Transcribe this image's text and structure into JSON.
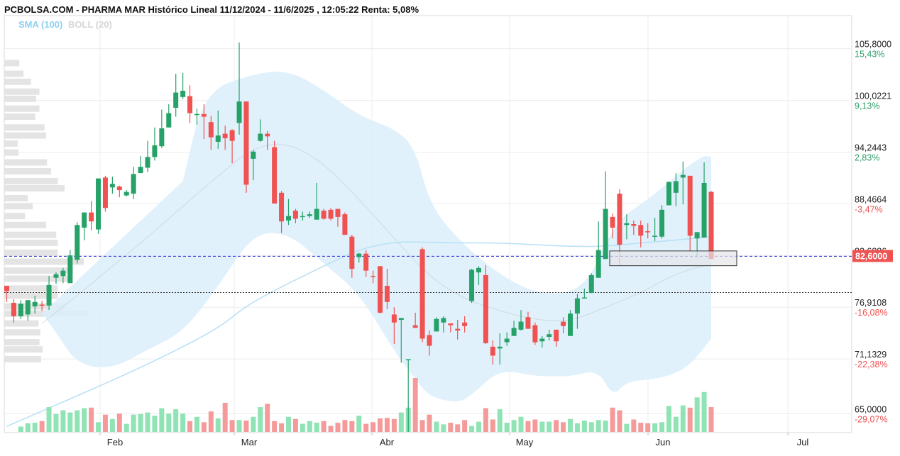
{
  "header": {
    "title": "PCBOLSA.COM - PHARMA MAR Histórico Lineal 11/12/2024 - 11/6/2025 , 12:05:22 Renta: 5,08%"
  },
  "legend": {
    "sma_label": "SMA (100)",
    "boll_label": "BOLL (20)"
  },
  "colors": {
    "up": "#26a269",
    "down": "#f05252",
    "up_volume": "#8fe3b4",
    "down_volume": "#f59a9a",
    "boll_fill": "#dbeefb",
    "sma": "#b9e1f6",
    "boll_mid": "#c8c8c8",
    "current_line": "#2b2bcc",
    "current_badge": "#f05252",
    "positive_text": "#2f9e6a",
    "negative_text": "#f05252"
  },
  "chart_data": {
    "type": "candlestick",
    "y_range": [
      62.9,
      109.5
    ],
    "price_ticks": [
      {
        "price": "105,8000",
        "renta": "15,43%",
        "sign": "pos"
      },
      {
        "price": "100,0221",
        "renta": "9,13%",
        "sign": "pos"
      },
      {
        "price": "94,2443",
        "renta": "2,83%",
        "sign": "pos"
      },
      {
        "price": "88,4664",
        "renta": "-3,47%",
        "sign": "neg"
      },
      {
        "price": "82,6886",
        "renta": "",
        "sign": "neg"
      },
      {
        "price": "76,9108",
        "renta": "-16,08%",
        "sign": "neg"
      },
      {
        "price": "71,1329",
        "renta": "-22,38%",
        "sign": "neg"
      },
      {
        "price": "65,0000",
        "renta": "-29,07%",
        "sign": "neg"
      }
    ],
    "x_ticks": [
      "Feb",
      "Mar",
      "Abr",
      "May",
      "Jun",
      "Jul"
    ],
    "current_price": "82,6000",
    "current_value": 82.6,
    "reference_value": 78.55,
    "box": {
      "top": 83.2,
      "bottom": 81.55
    },
    "candles": [
      [
        78.7,
        79.3,
        78.0,
        77.5,
        "d"
      ],
      [
        77.4,
        75.9,
        77.8,
        75.2,
        "d"
      ],
      [
        75.9,
        77.3,
        77.7,
        75.6,
        "u"
      ],
      [
        76.1,
        77.7,
        77.7,
        75.4,
        "u"
      ],
      [
        77.0,
        77.5,
        78.2,
        76.2,
        "u"
      ],
      [
        77.1,
        77.2,
        77.6,
        76.5,
        "d"
      ],
      [
        77.1,
        79.4,
        80.4,
        76.6,
        "u"
      ],
      [
        80.2,
        80.6,
        80.8,
        79.5,
        "u"
      ],
      [
        80.4,
        81.0,
        81.3,
        79.6,
        "u"
      ],
      [
        79.6,
        82.7,
        83.3,
        79.7,
        "u"
      ],
      [
        82.2,
        86.1,
        86.4,
        81.8,
        "u"
      ],
      [
        85.8,
        87.5,
        87.5,
        84.4,
        "u"
      ],
      [
        86.5,
        87.5,
        88.8,
        85.5,
        "d"
      ],
      [
        85.6,
        91.3,
        91.3,
        85.1,
        "u"
      ],
      [
        91.4,
        88.0,
        91.6,
        87.6,
        "d"
      ],
      [
        90.3,
        90.7,
        91.5,
        89.6,
        "u"
      ],
      [
        90.4,
        90.0,
        90.5,
        89.2,
        "d"
      ],
      [
        89.4,
        89.8,
        90.0,
        89.3,
        "u"
      ],
      [
        89.6,
        91.8,
        92.6,
        89.0,
        "u"
      ],
      [
        91.9,
        92.6,
        93.8,
        92.4,
        "u"
      ],
      [
        92.5,
        93.7,
        95.5,
        92.0,
        "u"
      ],
      [
        93.7,
        95.0,
        97.0,
        93.3,
        "u"
      ],
      [
        94.9,
        96.9,
        99.0,
        94.7,
        "u"
      ],
      [
        97.0,
        98.6,
        99.6,
        97.2,
        "u"
      ],
      [
        99.2,
        100.9,
        103.0,
        98.2,
        "u"
      ],
      [
        100.4,
        101.1,
        103.1,
        100.2,
        "u"
      ],
      [
        100.5,
        98.6,
        101.7,
        97.5,
        "d"
      ],
      [
        98.5,
        98.5,
        99.1,
        97.3,
        "u"
      ],
      [
        98.5,
        98.2,
        99.6,
        95.7,
        "d"
      ],
      [
        97.6,
        95.9,
        98.3,
        94.5,
        "d"
      ],
      [
        95.4,
        96.1,
        98.9,
        94.6,
        "u"
      ],
      [
        96.3,
        95.8,
        97.2,
        94.5,
        "d"
      ],
      [
        96.7,
        95.5,
        96.8,
        93.0,
        "d"
      ],
      [
        97.5,
        99.9,
        106.5,
        96.2,
        "u"
      ],
      [
        99.9,
        90.6,
        99.9,
        89.7,
        "d"
      ],
      [
        93.5,
        94.3,
        94.5,
        91.1,
        "u"
      ],
      [
        95.5,
        96.3,
        97.9,
        95.4,
        "u"
      ],
      [
        96.0,
        96.3,
        96.6,
        94.5,
        "d"
      ],
      [
        94.8,
        88.5,
        95.5,
        88.5,
        "d"
      ],
      [
        89.7,
        86.5,
        89.9,
        85.2,
        "d"
      ],
      [
        86.6,
        87.1,
        89.0,
        86.1,
        "u"
      ],
      [
        87.7,
        86.8,
        87.9,
        86.3,
        "d"
      ],
      [
        87.1,
        87.0,
        87.6,
        86.6,
        "u"
      ],
      [
        87.1,
        87.3,
        87.6,
        86.9,
        "u"
      ],
      [
        86.7,
        87.9,
        90.8,
        86.8,
        "u"
      ],
      [
        87.7,
        86.8,
        87.9,
        86.7,
        "d"
      ],
      [
        87.8,
        86.8,
        88.0,
        86.6,
        "d"
      ],
      [
        87.9,
        87.0,
        87.9,
        85.9,
        "d"
      ],
      [
        87.3,
        85.0,
        87.5,
        85.0,
        "d"
      ],
      [
        84.8,
        81.2,
        85.0,
        80.2,
        "d"
      ],
      [
        82.9,
        82.5,
        83.0,
        81.9,
        "u"
      ],
      [
        82.9,
        81.0,
        83.3,
        80.3,
        "d"
      ],
      [
        80.4,
        80.4,
        81.0,
        79.6,
        "d"
      ],
      [
        81.5,
        76.3,
        81.2,
        76.2,
        "d"
      ],
      [
        79.3,
        77.5,
        81.2,
        76.7,
        "d"
      ],
      [
        76.1,
        75.2,
        76.9,
        72.8,
        "d"
      ],
      [
        75.5,
        75.7,
        75.0,
        70.7,
        "u"
      ],
      [
        71.1,
        71.1,
        71.1,
        63.0,
        "u"
      ],
      [
        74.9,
        74.6,
        76.3,
        74.6,
        "d"
      ],
      [
        83.4,
        73.4,
        83.6,
        73.0,
        "d"
      ],
      [
        73.8,
        72.6,
        74.3,
        71.5,
        "d"
      ],
      [
        74.2,
        75.6,
        75.8,
        74.4,
        "u"
      ],
      [
        75.2,
        75.7,
        75.9,
        74.1,
        "u"
      ],
      [
        75.1,
        74.9,
        75.1,
        74.1,
        "d"
      ],
      [
        74.3,
        74.5,
        75.5,
        73.3,
        "d"
      ],
      [
        75.2,
        74.8,
        75.9,
        74.1,
        "d"
      ],
      [
        77.6,
        81.1,
        81.2,
        77.4,
        "u"
      ],
      [
        81.3,
        80.8,
        81.5,
        79.4,
        "u"
      ],
      [
        80.5,
        72.9,
        81.6,
        72.8,
        "d"
      ],
      [
        71.5,
        72.5,
        73.2,
        70.5,
        "d"
      ],
      [
        72.3,
        72.5,
        74.0,
        70.5,
        "u"
      ],
      [
        73.4,
        73.0,
        74.1,
        72.6,
        "u"
      ],
      [
        73.7,
        74.6,
        75.4,
        73.7,
        "u"
      ],
      [
        74.4,
        75.3,
        76.6,
        74.3,
        "u"
      ],
      [
        75.8,
        74.5,
        76.4,
        74.5,
        "d"
      ],
      [
        74.9,
        73.0,
        75.2,
        72.7,
        "d"
      ],
      [
        73.1,
        73.4,
        73.7,
        72.4,
        "u"
      ],
      [
        73.6,
        73.9,
        74.4,
        73.2,
        "u"
      ],
      [
        74.4,
        73.1,
        74.3,
        72.5,
        "d"
      ],
      [
        75.3,
        74.8,
        75.8,
        74.0,
        "d"
      ],
      [
        73.7,
        76.2,
        76.6,
        73.9,
        "u"
      ],
      [
        76.2,
        77.9,
        78.4,
        74.5,
        "u"
      ],
      [
        78.0,
        78.0,
        79.0,
        78.3,
        "u"
      ],
      [
        78.5,
        80.5,
        80.7,
        78.6,
        "u"
      ],
      [
        80.2,
        83.3,
        86.5,
        80.4,
        "u"
      ],
      [
        82.3,
        87.9,
        92.1,
        82.3,
        "u"
      ],
      [
        87.0,
        85.8,
        87.4,
        84.6,
        "d"
      ],
      [
        89.6,
        83.9,
        90.1,
        81.6,
        "d"
      ],
      [
        86.3,
        86.1,
        87.3,
        84.5,
        "u"
      ],
      [
        86.0,
        86.2,
        86.6,
        85.0,
        "d"
      ],
      [
        86.1,
        84.9,
        86.6,
        83.6,
        "d"
      ],
      [
        85.4,
        85.3,
        86.3,
        84.6,
        "d"
      ],
      [
        84.8,
        84.9,
        86.9,
        84.3,
        "u"
      ],
      [
        84.8,
        87.8,
        88.3,
        84.6,
        "u"
      ],
      [
        88.3,
        90.9,
        91.0,
        88.3,
        "u"
      ],
      [
        89.7,
        91.0,
        91.9,
        88.2,
        "u"
      ],
      [
        91.7,
        91.4,
        93.2,
        88.4,
        "u"
      ],
      [
        91.6,
        84.9,
        91.6,
        83.2,
        "d"
      ],
      [
        84.6,
        85.3,
        85.0,
        82.5,
        "u"
      ],
      [
        84.7,
        90.8,
        93.1,
        84.9,
        "u"
      ],
      [
        89.8,
        82.3,
        89.9,
        82.3,
        "d"
      ]
    ],
    "volume_level_pct": [
      [
        2,
        10
      ],
      [
        3,
        16
      ],
      [
        4,
        17
      ],
      [
        5,
        20
      ],
      [
        6,
        46
      ],
      [
        7,
        33
      ],
      [
        8,
        40
      ],
      [
        9,
        36
      ],
      [
        10,
        40
      ],
      [
        11,
        44
      ],
      [
        12,
        45
      ],
      [
        13,
        18
      ],
      [
        14,
        32
      ],
      [
        15,
        24
      ],
      [
        16,
        34
      ],
      [
        17,
        15
      ],
      [
        18,
        32
      ],
      [
        19,
        33
      ],
      [
        20,
        36
      ],
      [
        21,
        30
      ],
      [
        22,
        44
      ],
      [
        23,
        34
      ],
      [
        24,
        42
      ],
      [
        25,
        34
      ],
      [
        26,
        20
      ],
      [
        27,
        28
      ],
      [
        28,
        18
      ],
      [
        29,
        38
      ],
      [
        30,
        25
      ],
      [
        31,
        54
      ],
      [
        32,
        22
      ],
      [
        33,
        22
      ],
      [
        34,
        21
      ],
      [
        35,
        28
      ],
      [
        36,
        46
      ],
      [
        37,
        52
      ],
      [
        38,
        20
      ],
      [
        39,
        16
      ],
      [
        40,
        28
      ],
      [
        41,
        24
      ],
      [
        42,
        15
      ],
      [
        43,
        20
      ],
      [
        44,
        17
      ],
      [
        45,
        20
      ],
      [
        46,
        11
      ],
      [
        47,
        17
      ],
      [
        48,
        22
      ],
      [
        49,
        20
      ],
      [
        50,
        30
      ],
      [
        51,
        15
      ],
      [
        52,
        18
      ],
      [
        53,
        25
      ],
      [
        54,
        26
      ],
      [
        55,
        24
      ],
      [
        56,
        36
      ],
      [
        57,
        45
      ],
      [
        58,
        100
      ],
      [
        59,
        22
      ],
      [
        60,
        32
      ],
      [
        61,
        19
      ],
      [
        62,
        14
      ],
      [
        63,
        17
      ],
      [
        64,
        14
      ],
      [
        65,
        22
      ],
      [
        66,
        11
      ],
      [
        67,
        19
      ],
      [
        68,
        44
      ],
      [
        69,
        23
      ],
      [
        70,
        42
      ],
      [
        71,
        17
      ],
      [
        72,
        22
      ],
      [
        73,
        28
      ],
      [
        74,
        20
      ],
      [
        75,
        23
      ],
      [
        76,
        19
      ],
      [
        77,
        19
      ],
      [
        78,
        22
      ],
      [
        79,
        18
      ],
      [
        80,
        24
      ],
      [
        81,
        16
      ],
      [
        82,
        21
      ],
      [
        83,
        18
      ],
      [
        84,
        22
      ],
      [
        85,
        21
      ],
      [
        86,
        45
      ],
      [
        87,
        40
      ],
      [
        88,
        15
      ],
      [
        89,
        23
      ],
      [
        90,
        17
      ],
      [
        91,
        16
      ],
      [
        92,
        16
      ],
      [
        93,
        18
      ],
      [
        94,
        48
      ],
      [
        95,
        28
      ],
      [
        96,
        49
      ],
      [
        97,
        45
      ],
      [
        98,
        64
      ],
      [
        99,
        74
      ],
      [
        100,
        46
      ]
    ],
    "volume_profile_pct": [
      [
        104.2,
        18
      ],
      [
        103.0,
        23
      ],
      [
        102.1,
        32
      ],
      [
        101.0,
        42
      ],
      [
        100.2,
        38
      ],
      [
        99.1,
        42
      ],
      [
        98.2,
        37
      ],
      [
        97.0,
        48
      ],
      [
        96.1,
        50
      ],
      [
        95.2,
        16
      ],
      [
        94.2,
        17
      ],
      [
        93.1,
        51
      ],
      [
        92.1,
        56
      ],
      [
        91.0,
        64
      ],
      [
        90.2,
        72
      ],
      [
        89.1,
        28
      ],
      [
        88.2,
        34
      ],
      [
        87.1,
        25
      ],
      [
        86.1,
        50
      ],
      [
        85.0,
        62
      ],
      [
        84.1,
        64
      ],
      [
        83.0,
        64
      ],
      [
        82.0,
        95
      ],
      [
        81.0,
        82
      ],
      [
        80.1,
        79
      ],
      [
        79.0,
        64
      ],
      [
        78.2,
        64
      ],
      [
        77.0,
        72
      ],
      [
        76.2,
        100
      ],
      [
        75.1,
        41
      ],
      [
        74.1,
        43
      ],
      [
        73.0,
        42
      ],
      [
        72.2,
        46
      ],
      [
        71.1,
        44
      ]
    ],
    "boll_upper": [
      [
        25,
        91
      ],
      [
        28,
        101
      ],
      [
        35,
        103
      ],
      [
        40,
        103.4
      ],
      [
        45,
        101.2
      ],
      [
        50,
        98.3
      ],
      [
        55,
        96.9
      ],
      [
        58,
        94.7
      ],
      [
        60,
        88.5
      ],
      [
        64,
        84.5
      ],
      [
        70,
        80.5
      ],
      [
        75,
        78.5
      ],
      [
        80,
        78.4
      ],
      [
        83,
        80.5
      ],
      [
        84,
        82.6
      ],
      [
        87,
        86.8
      ],
      [
        90,
        88.4
      ],
      [
        93,
        90.2
      ],
      [
        96,
        92.3
      ],
      [
        99,
        93.9
      ],
      [
        100,
        93.7
      ],
      [
        100,
        93.7
      ]
    ],
    "boll_lower": [
      [
        100,
        73.4
      ],
      [
        97,
        70.4
      ],
      [
        94,
        69.2
      ],
      [
        91,
        68.8
      ],
      [
        88,
        68.6
      ],
      [
        86,
        66.9
      ],
      [
        84,
        69.9
      ],
      [
        80,
        69.2
      ],
      [
        78,
        69.2
      ],
      [
        75,
        69.2
      ],
      [
        70,
        70.0
      ],
      [
        66,
        67.1
      ],
      [
        64,
        66.2
      ],
      [
        60,
        66.9
      ],
      [
        58,
        68.9
      ],
      [
        55,
        72.0
      ],
      [
        50,
        78.5
      ],
      [
        45,
        81.8
      ],
      [
        40,
        85.2
      ],
      [
        35,
        85.2
      ],
      [
        30,
        79.2
      ],
      [
        25,
        74.1
      ],
      [
        20,
        72.2
      ],
      [
        15,
        70.0
      ],
      [
        10,
        70.5
      ],
      [
        7,
        74.1
      ],
      [
        5,
        76.2
      ]
    ],
    "boll_mid": [
      [
        5,
        75.1
      ],
      [
        10,
        78.2
      ],
      [
        15,
        81.5
      ],
      [
        20,
        84.7
      ],
      [
        25,
        88.2
      ],
      [
        30,
        91.6
      ],
      [
        35,
        94.8
      ],
      [
        40,
        95.3
      ],
      [
        45,
        93.0
      ],
      [
        50,
        89.0
      ],
      [
        55,
        84.6
      ],
      [
        60,
        80.3
      ],
      [
        65,
        77.8
      ],
      [
        70,
        76.5
      ],
      [
        75,
        75.5
      ],
      [
        80,
        75.3
      ],
      [
        85,
        76.9
      ],
      [
        90,
        78.5
      ],
      [
        95,
        80.7
      ],
      [
        100,
        81.8
      ]
    ],
    "sma": [
      [
        0,
        63.6
      ],
      [
        10,
        67.0
      ],
      [
        20,
        70.5
      ],
      [
        30,
        74.5
      ],
      [
        34,
        77.1
      ],
      [
        40,
        79.6
      ],
      [
        45,
        81.5
      ],
      [
        50,
        83.4
      ],
      [
        55,
        84.2
      ],
      [
        58,
        84.2
      ],
      [
        65,
        84.1
      ],
      [
        70,
        84.1
      ],
      [
        75,
        83.9
      ],
      [
        80,
        83.7
      ],
      [
        85,
        83.7
      ],
      [
        90,
        84.1
      ],
      [
        95,
        84.4
      ],
      [
        100,
        84.8
      ]
    ]
  }
}
